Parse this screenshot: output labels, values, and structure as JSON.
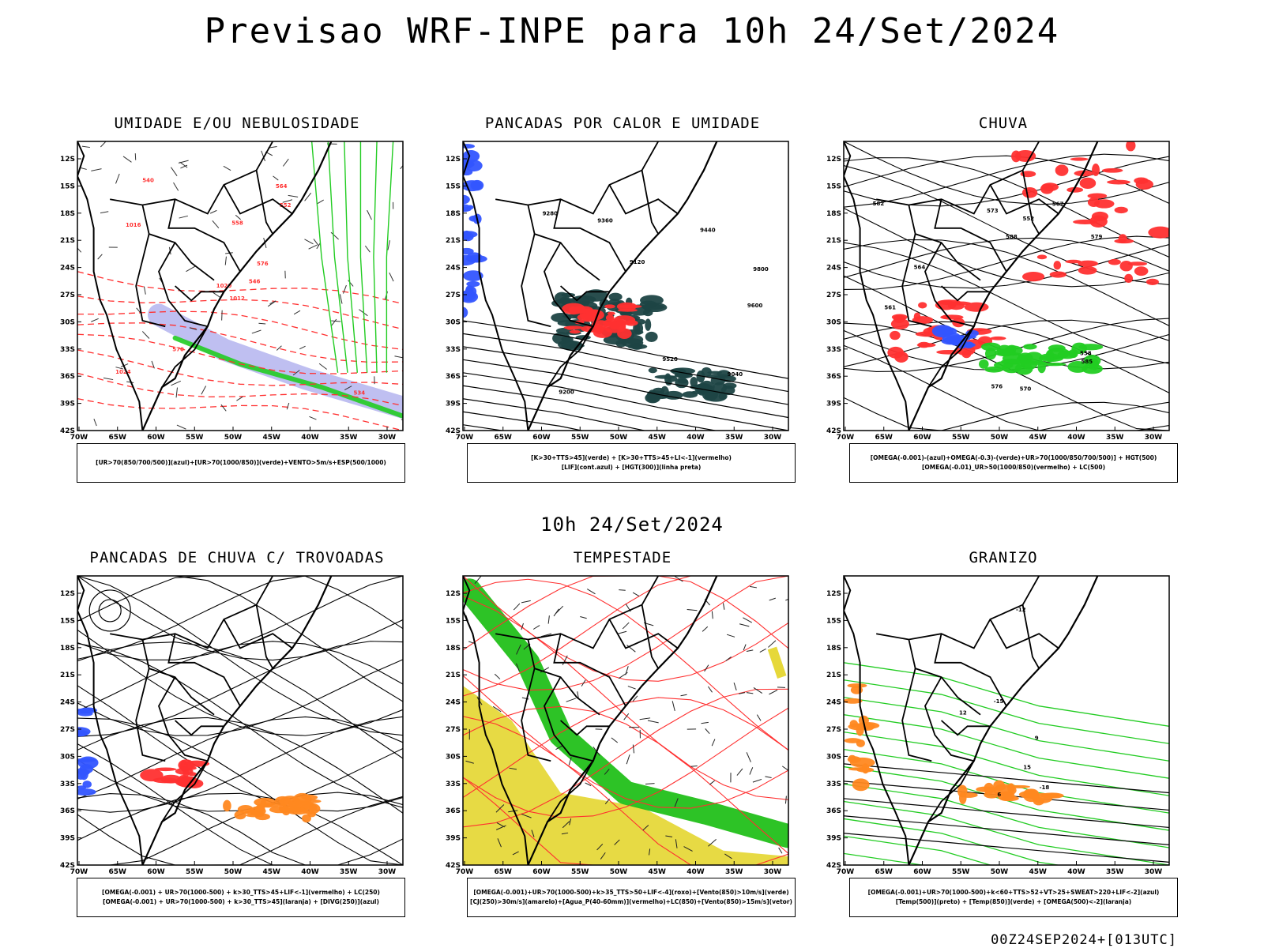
{
  "page": {
    "title": "Previsao WRF-INPE  para 10h 24/Set/2024",
    "mid_title": "10h 24/Set/2024",
    "footer": "00Z24SEP2024+[013UTC]"
  },
  "axes": {
    "lat_ticks": [
      "12S",
      "15S",
      "18S",
      "21S",
      "24S",
      "27S",
      "30S",
      "33S",
      "36S",
      "39S",
      "42S"
    ],
    "lon_ticks": [
      "70W",
      "65W",
      "60W",
      "55W",
      "50W",
      "45W",
      "40W",
      "35W",
      "30W"
    ]
  },
  "colors": {
    "blue": "#3355ff",
    "green": "#22cc22",
    "red": "#ff3030",
    "dark_teal": "#1e4545",
    "orange": "#ff8820",
    "yellow": "#e6d83a",
    "bright_green": "#22c01a",
    "lavender": "#b8b8f0"
  },
  "panels": [
    {
      "title": "UMIDADE E/OU NEBULOSIDADE",
      "legend": [
        "[UR>70(850/700/500)](azul)+[UR>70(1000/850)](verde)+VENTO>5m/s+ESP(500/1000)"
      ],
      "labels": [
        "1012",
        "1016",
        "1020",
        "1024",
        "576",
        "570",
        "564",
        "558",
        "552",
        "546",
        "540",
        "534"
      ]
    },
    {
      "title": "PANCADAS POR CALOR E UMIDADE",
      "legend": [
        "[K>30+TTS>45](verde) + [K>30+TTS>45+LI<-1](vermelho)",
        "[LIF](cont.azul) + [HGT(300)](linha preta)"
      ],
      "labels": [
        "9600",
        "9520",
        "9440",
        "9360",
        "9280",
        "9200",
        "9120",
        "9040",
        "9800"
      ]
    },
    {
      "title": "CHUVA",
      "legend": [
        "[OMEGA(-0.001)-(azul)+OMEGA(-0.3)-(verde)+UR>70(1000/850/700/500)] + HGT(500)",
        "[OMEGA(-0.01)_UR>50(1000/850)(vermelho) + LC(500)"
      ],
      "labels": [
        "588",
        "585",
        "582",
        "579",
        "576",
        "573",
        "570",
        "567",
        "564",
        "561",
        "558",
        "552"
      ]
    },
    {
      "title": "PANCADAS DE CHUVA C/ TROVOADAS",
      "legend": [
        "[OMEGA(-0.001) + UR>70(1000-500) + k>30_TTS>45+LIF<-1](vermelho) + LC(250)",
        "[OMEGA(-0.001) + UR>70(1000-500) + k>30_TTS>45](laranja) + [DIVG(250)](azul)"
      ],
      "labels": []
    },
    {
      "title": "TEMPESTADE",
      "legend": [
        "[OMEGA(-0.001)+UR>70(1000-500)+k>35_TTS>50+LIF<-4](roxo)+[Vento(850)>10m/s](verde)",
        "[CJ(250)>30m/s](amarelo)+[Agua_P(40-60mm)](vermelho)+LC(850)+[Vento(850)>15m/s](vetor)"
      ],
      "labels": [
        "40",
        "30"
      ]
    },
    {
      "title": "GRANIZO",
      "legend": [
        "[OMEGA(-0.001)+UR>70(1000-500)+k<60+TTS>52+VT>25+SWEAT>220+LIF<-2](azul)",
        "[Temp(500)](preto) + [Temp(850)](verde) + [OMEGA(500)<-2](laranja)"
      ],
      "labels": [
        "-12",
        "-15",
        "-18",
        "15",
        "12",
        "9",
        "6"
      ]
    }
  ]
}
